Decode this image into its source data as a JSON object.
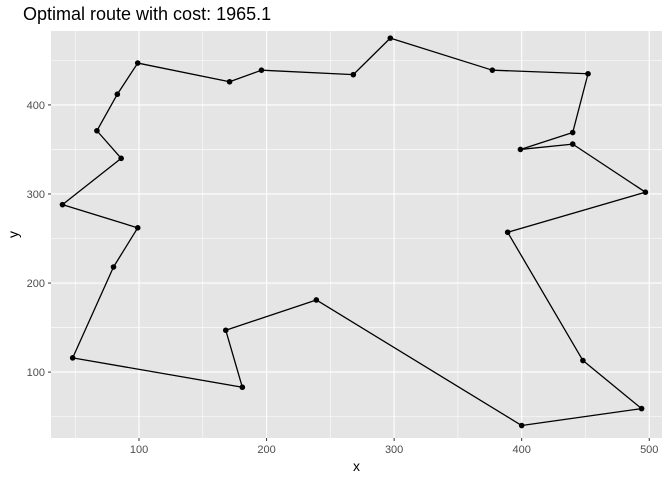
{
  "chart_data": {
    "type": "line",
    "title": "Optimal route with cost: 1965.1",
    "xlabel": "x",
    "ylabel": "y",
    "xlim": [
      31,
      510
    ],
    "ylim": [
      26,
      483
    ],
    "x_ticks": [
      100,
      200,
      300,
      400,
      500
    ],
    "y_ticks": [
      100,
      200,
      300,
      400
    ],
    "grid": true,
    "background": "#e5e5e5",
    "grid_color": "#ffffff",
    "line_color": "#000000",
    "point_color": "#000000",
    "route": [
      {
        "x": 99,
        "y": 447
      },
      {
        "x": 171,
        "y": 426
      },
      {
        "x": 196,
        "y": 439
      },
      {
        "x": 268,
        "y": 434
      },
      {
        "x": 297,
        "y": 475
      },
      {
        "x": 377,
        "y": 439
      },
      {
        "x": 452,
        "y": 435
      },
      {
        "x": 440,
        "y": 369
      },
      {
        "x": 399,
        "y": 350
      },
      {
        "x": 440,
        "y": 356
      },
      {
        "x": 497,
        "y": 302
      },
      {
        "x": 389,
        "y": 257
      },
      {
        "x": 448,
        "y": 113
      },
      {
        "x": 494,
        "y": 59
      },
      {
        "x": 400,
        "y": 40
      },
      {
        "x": 239,
        "y": 181
      },
      {
        "x": 168,
        "y": 147
      },
      {
        "x": 181,
        "y": 83
      },
      {
        "x": 48,
        "y": 116
      },
      {
        "x": 80,
        "y": 218
      },
      {
        "x": 99,
        "y": 262
      },
      {
        "x": 40,
        "y": 288
      },
      {
        "x": 86,
        "y": 340
      },
      {
        "x": 67,
        "y": 371
      },
      {
        "x": 83,
        "y": 412
      },
      {
        "x": 99,
        "y": 447
      }
    ]
  }
}
